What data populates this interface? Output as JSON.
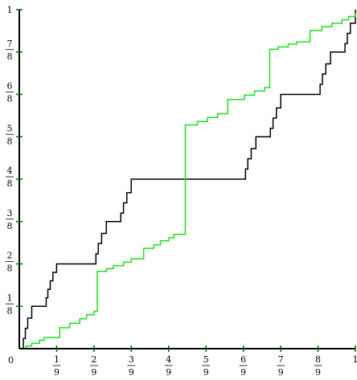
{
  "chart_data": {
    "type": "line",
    "title": "",
    "xlabel": "",
    "ylabel": "",
    "xlim": [
      0,
      1
    ],
    "ylim": [
      0,
      1
    ],
    "origin_label": "0",
    "x_ticks": [
      {
        "value": 0.1111,
        "num": "1",
        "den": "9"
      },
      {
        "value": 0.2222,
        "num": "2",
        "den": "9"
      },
      {
        "value": 0.3333,
        "num": "3",
        "den": "9"
      },
      {
        "value": 0.4444,
        "num": "4",
        "den": "9"
      },
      {
        "value": 0.5556,
        "num": "5",
        "den": "9"
      },
      {
        "value": 0.6667,
        "num": "6",
        "den": "9"
      },
      {
        "value": 0.7778,
        "num": "7",
        "den": "9"
      },
      {
        "value": 0.8889,
        "num": "8",
        "den": "9"
      },
      {
        "value": 1.0,
        "num": "1",
        "den": ""
      }
    ],
    "y_ticks": [
      {
        "value": 0.125,
        "num": "1",
        "den": "8"
      },
      {
        "value": 0.25,
        "num": "2",
        "den": "8"
      },
      {
        "value": 0.375,
        "num": "3",
        "den": "8"
      },
      {
        "value": 0.5,
        "num": "4",
        "den": "8"
      },
      {
        "value": 0.625,
        "num": "5",
        "den": "8"
      },
      {
        "value": 0.75,
        "num": "6",
        "den": "8"
      },
      {
        "value": 0.875,
        "num": "7",
        "den": "8"
      },
      {
        "value": 1.0,
        "num": "1",
        "den": ""
      }
    ],
    "series": [
      {
        "color": "#000000",
        "style": "step",
        "points": [
          [
            0,
            0
          ],
          [
            0.012,
            0.03
          ],
          [
            0.018,
            0.06
          ],
          [
            0.025,
            0.09
          ],
          [
            0.037,
            0.125
          ],
          [
            0.074,
            0.125
          ],
          [
            0.08,
            0.15
          ],
          [
            0.085,
            0.175
          ],
          [
            0.092,
            0.2
          ],
          [
            0.1,
            0.225
          ],
          [
            0.111,
            0.25
          ],
          [
            0.222,
            0.25
          ],
          [
            0.228,
            0.28
          ],
          [
            0.235,
            0.31
          ],
          [
            0.245,
            0.34
          ],
          [
            0.259,
            0.375
          ],
          [
            0.296,
            0.375
          ],
          [
            0.302,
            0.4
          ],
          [
            0.31,
            0.43
          ],
          [
            0.32,
            0.46
          ],
          [
            0.333,
            0.5
          ],
          [
            0.667,
            0.5
          ],
          [
            0.673,
            0.53
          ],
          [
            0.68,
            0.56
          ],
          [
            0.69,
            0.59
          ],
          [
            0.704,
            0.625
          ],
          [
            0.741,
            0.625
          ],
          [
            0.747,
            0.65
          ],
          [
            0.755,
            0.68
          ],
          [
            0.765,
            0.71
          ],
          [
            0.778,
            0.75
          ],
          [
            0.889,
            0.75
          ],
          [
            0.895,
            0.78
          ],
          [
            0.902,
            0.81
          ],
          [
            0.912,
            0.84
          ],
          [
            0.926,
            0.875
          ],
          [
            0.963,
            0.875
          ],
          [
            0.969,
            0.9
          ],
          [
            0.976,
            0.93
          ],
          [
            0.985,
            0.96
          ],
          [
            1.0,
            1.0
          ]
        ]
      },
      {
        "color": "#22dd22",
        "style": "step",
        "points": [
          [
            0,
            0
          ],
          [
            0.02,
            0.008
          ],
          [
            0.037,
            0.016
          ],
          [
            0.06,
            0.025
          ],
          [
            0.074,
            0.033
          ],
          [
            0.12,
            0.062
          ],
          [
            0.15,
            0.075
          ],
          [
            0.18,
            0.088
          ],
          [
            0.2,
            0.1
          ],
          [
            0.222,
            0.11
          ],
          [
            0.232,
            0.228
          ],
          [
            0.26,
            0.236
          ],
          [
            0.28,
            0.245
          ],
          [
            0.31,
            0.255
          ],
          [
            0.333,
            0.265
          ],
          [
            0.37,
            0.296
          ],
          [
            0.4,
            0.306
          ],
          [
            0.42,
            0.318
          ],
          [
            0.445,
            0.327
          ],
          [
            0.46,
            0.337
          ],
          [
            0.494,
            0.66
          ],
          [
            0.53,
            0.67
          ],
          [
            0.56,
            0.682
          ],
          [
            0.59,
            0.693
          ],
          [
            0.62,
            0.735
          ],
          [
            0.67,
            0.748
          ],
          [
            0.7,
            0.76
          ],
          [
            0.73,
            0.77
          ],
          [
            0.745,
            0.883
          ],
          [
            0.77,
            0.89
          ],
          [
            0.8,
            0.898
          ],
          [
            0.825,
            0.905
          ],
          [
            0.865,
            0.938
          ],
          [
            0.9,
            0.95
          ],
          [
            0.93,
            0.96
          ],
          [
            0.96,
            0.97
          ],
          [
            0.98,
            0.98
          ],
          [
            1.0,
            0.99
          ]
        ]
      }
    ]
  }
}
